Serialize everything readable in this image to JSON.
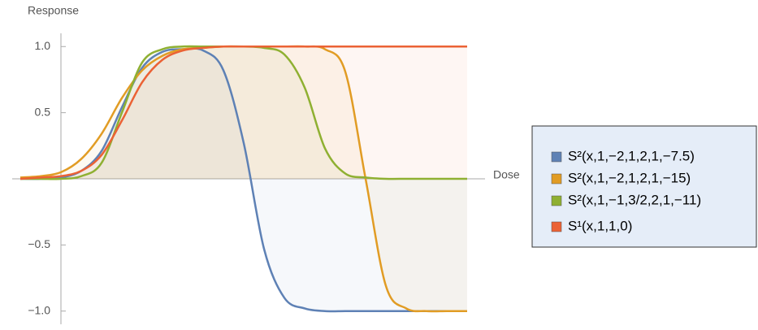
{
  "chart_data": {
    "type": "line",
    "ylabel": "Response",
    "xlabel": "Dose",
    "x": [
      -1,
      -0.5,
      0,
      0.5,
      1,
      1.5,
      2,
      2.5,
      3,
      3.5,
      4,
      4.5,
      5,
      5.5,
      6,
      6.5,
      7,
      7.5,
      8,
      8.5,
      9,
      9.5,
      10
    ],
    "xlim": [
      -1.2,
      10.2
    ],
    "ylim": [
      -1.1,
      1.1
    ],
    "yticks": [
      {
        "value": -1,
        "label": "−1.0"
      },
      {
        "value": -0.5,
        "label": "−0.5"
      },
      {
        "value": 0.5,
        "label": "0.5"
      },
      {
        "value": 1,
        "label": "1.0"
      }
    ],
    "legend": "right",
    "series": [
      {
        "name": "S²(x,1,−2,1,2,1,−7.5)",
        "color": "#5e81b5",
        "values": [
          0,
          0,
          0.01,
          0.06,
          0.21,
          0.54,
          0.84,
          0.96,
          0.98,
          0.97,
          0.82,
          0.27,
          -0.53,
          -0.9,
          -0.98,
          -1,
          -1,
          -1,
          -1,
          -1,
          -1,
          -1,
          -1
        ]
      },
      {
        "name": "S²(x,1,−2,1,2,1,−15)",
        "color": "#e19c24",
        "values": [
          0.01,
          0.02,
          0.05,
          0.15,
          0.34,
          0.61,
          0.82,
          0.93,
          0.98,
          0.99,
          1,
          1,
          1,
          1,
          1,
          0.98,
          0.81,
          0,
          -0.81,
          -0.98,
          -1,
          -1,
          -1
        ]
      },
      {
        "name": "S²(x,1,−1,3/2,2,1,−11)",
        "color": "#8fb032",
        "values": [
          0,
          0,
          0,
          0.02,
          0.12,
          0.5,
          0.88,
          0.98,
          1,
          1,
          1,
          1,
          0.99,
          0.94,
          0.69,
          0.23,
          0.04,
          0.01,
          0,
          0,
          0,
          0,
          0
        ]
      },
      {
        "name": "S¹(x,1,1,0)",
        "color": "#eb6235",
        "values": [
          0,
          0.01,
          0.02,
          0.06,
          0.18,
          0.44,
          0.73,
          0.9,
          0.97,
          0.99,
          1,
          1,
          1,
          1,
          1,
          1,
          1,
          1,
          1,
          1,
          1,
          1,
          1
        ]
      }
    ]
  }
}
